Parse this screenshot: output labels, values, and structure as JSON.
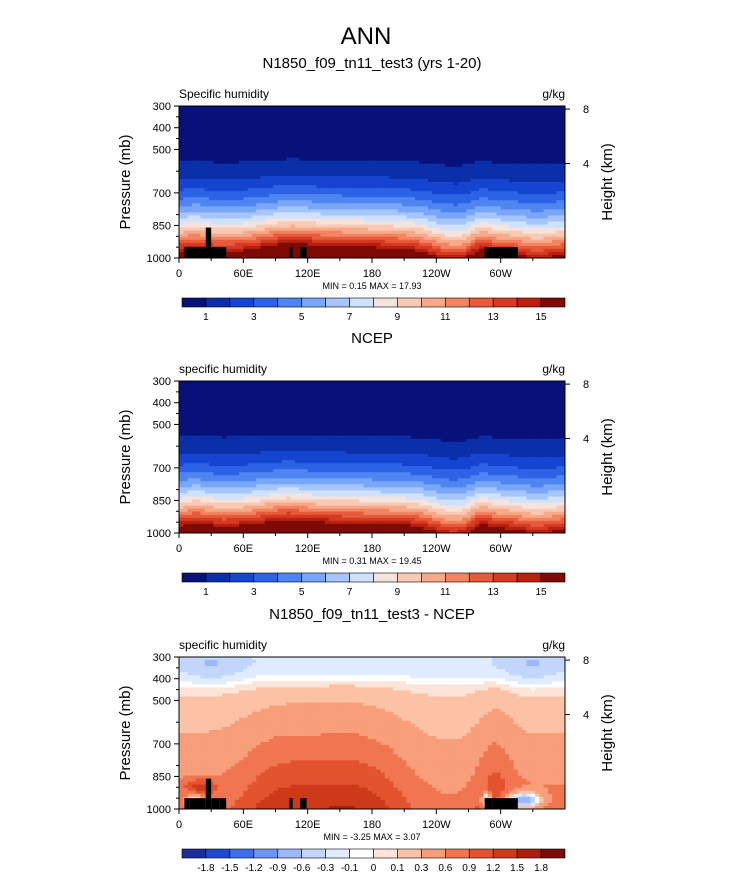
{
  "page_title": "ANN",
  "palette": {
    "sequential": [
      "#08107a",
      "#0a2fa8",
      "#1545d0",
      "#2c63e6",
      "#4f85f0",
      "#7aa6f7",
      "#a6c6fb",
      "#cfe1fd",
      "#f4e4dd",
      "#f9c9b4",
      "#f7aa8a",
      "#f28461",
      "#e75a3b",
      "#d63a22",
      "#b8200f",
      "#7d0a05"
    ],
    "diverging": [
      "#1b2c9e",
      "#2149cf",
      "#3f6fe8",
      "#6c95f4",
      "#9ab8fa",
      "#c2d6fc",
      "#e1ebfe",
      "#ffffff",
      "#fde4d8",
      "#fbc2a6",
      "#f89e7b",
      "#f07651",
      "#e3532e",
      "#cc3a1a",
      "#a72010",
      "#7a0c06"
    ],
    "topo_fill": "#000000"
  },
  "chart_data": [
    {
      "type": "contour",
      "title": "N1850_f09_tn11_test3 (yrs 1-20)",
      "left_label": "Specific humidity",
      "units": "g/kg",
      "ylabel": "Pressure (mb)",
      "ylabel_right": "Height (km)",
      "x_ticks": [
        "0",
        "60E",
        "120E",
        "180",
        "120W",
        "60W"
      ],
      "x_tick_lon": [
        0,
        60,
        120,
        180,
        240,
        300
      ],
      "xlim": [
        0,
        360
      ],
      "y_ticks": [
        300,
        400,
        500,
        700,
        850,
        1000
      ],
      "ylim_mb": [
        300,
        1000
      ],
      "y_ticks_right_km": [
        8,
        4
      ],
      "stats": "MIN =  0.15  MAX =  17.93",
      "levels": [
        1,
        2,
        3,
        4,
        5,
        6,
        7,
        8,
        9,
        10,
        11,
        12,
        13,
        14,
        15
      ],
      "colorbar_labels": [
        "1",
        "3",
        "5",
        "7",
        "9",
        "11",
        "13",
        "15"
      ],
      "palette": "sequential",
      "field": "model",
      "show_topo": true
    },
    {
      "type": "contour",
      "title": "NCEP",
      "left_label": "specific humidity",
      "units": "g/kg",
      "ylabel": "Pressure (mb)",
      "ylabel_right": "Height (km)",
      "x_ticks": [
        "0",
        "60E",
        "120E",
        "180",
        "120W",
        "60W"
      ],
      "x_tick_lon": [
        0,
        60,
        120,
        180,
        240,
        300
      ],
      "xlim": [
        0,
        360
      ],
      "y_ticks": [
        300,
        400,
        500,
        700,
        850,
        1000
      ],
      "ylim_mb": [
        300,
        1000
      ],
      "y_ticks_right_km": [
        8,
        4
      ],
      "stats": "MIN =  0.31  MAX =  19.45",
      "levels": [
        1,
        2,
        3,
        4,
        5,
        6,
        7,
        8,
        9,
        10,
        11,
        12,
        13,
        14,
        15
      ],
      "colorbar_labels": [
        "1",
        "3",
        "5",
        "7",
        "9",
        "11",
        "13",
        "15"
      ],
      "palette": "sequential",
      "field": "obs",
      "show_topo": false
    },
    {
      "type": "contour",
      "title": "N1850_f09_tn11_test3 - NCEP",
      "left_label": "specific humidity",
      "units": "g/kg",
      "ylabel": "Pressure (mb)",
      "ylabel_right": "Height (km)",
      "x_ticks": [
        "0",
        "60E",
        "120E",
        "180",
        "120W",
        "60W"
      ],
      "x_tick_lon": [
        0,
        60,
        120,
        180,
        240,
        300
      ],
      "xlim": [
        0,
        360
      ],
      "y_ticks": [
        300,
        400,
        500,
        700,
        850,
        1000
      ],
      "ylim_mb": [
        300,
        1000
      ],
      "y_ticks_right_km": [
        8,
        4
      ],
      "stats": "MIN = -3.25  MAX =  3.07",
      "levels": [
        -1.8,
        -1.5,
        -1.2,
        -0.9,
        -0.6,
        -0.3,
        -0.1,
        0,
        0.1,
        0.3,
        0.6,
        0.9,
        1.2,
        1.5,
        1.8
      ],
      "colorbar_labels": [
        "-1.8",
        "-1.5",
        "-1.2",
        "-0.9",
        "-0.6",
        "-0.3",
        "-0.1",
        "0",
        "0.1",
        "0.3",
        "0.6",
        "0.9",
        "1.2",
        "1.5",
        "1.8"
      ],
      "palette": "diverging",
      "field": "diff",
      "show_topo": true
    }
  ]
}
